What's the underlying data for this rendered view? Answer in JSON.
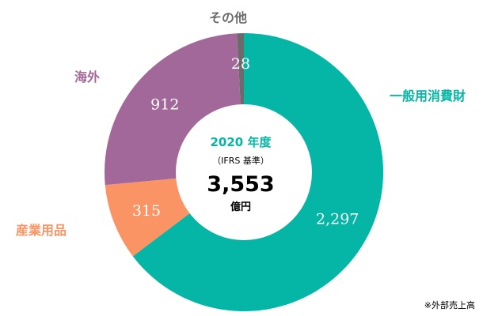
{
  "chart_data": {
    "type": "pie",
    "subtype": "donut",
    "categories": [
      "一般用消費財",
      "産業用品",
      "海外",
      "その他"
    ],
    "values": [
      2297,
      315,
      912,
      28
    ],
    "value_labels": [
      "2,297",
      "315",
      "912",
      "28"
    ],
    "colors": [
      "#05b5a5",
      "#fb9464",
      "#a2689a",
      "#6b6b6b"
    ],
    "label_colors": [
      "#05b5a5",
      "#fb9464",
      "#a2689a",
      "#6b6b6b"
    ],
    "center": {
      "year": "2020 年度",
      "basis": "（IFRS 基準）",
      "total": "3,553",
      "unit": "億円"
    },
    "footnote": "※外部売上高"
  }
}
